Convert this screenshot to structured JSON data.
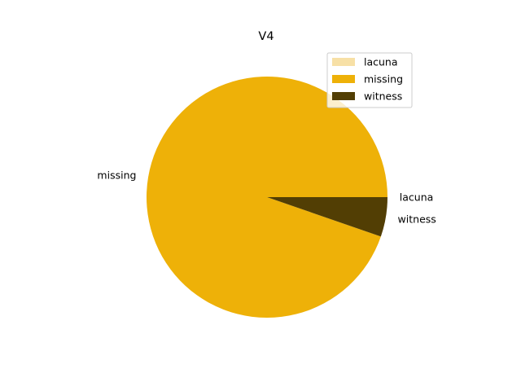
{
  "chart_data": {
    "type": "pie",
    "title": "V4",
    "categories": [
      "lacuna",
      "missing",
      "witness"
    ],
    "values": [
      0.0,
      94.7,
      5.3
    ],
    "colors": [
      "#f7e0a6",
      "#eeb108",
      "#523e04"
    ],
    "start_angle_deg": 0,
    "direction": "counterclockwise",
    "legend": {
      "placement": "top-right",
      "entries": [
        "lacuna",
        "missing",
        "witness"
      ]
    }
  }
}
